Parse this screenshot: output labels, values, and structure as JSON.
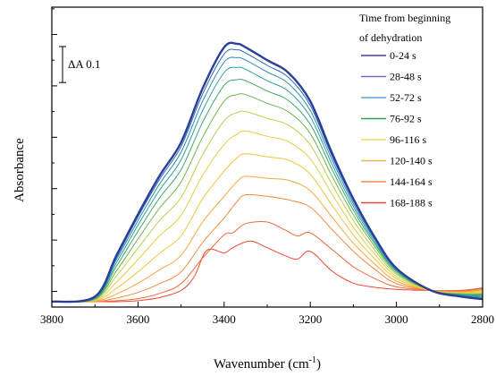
{
  "chart_data": {
    "type": "line",
    "title": "",
    "xlabel": "Wavenumber (cm",
    "xlabel_sup": "-1",
    "xlabel_close": ")",
    "ylabel": "Absorbance",
    "x_reversed": true,
    "xlim": [
      3800,
      2800
    ],
    "xticks": [
      "3800",
      "3600",
      "3400",
      "3200",
      "3000",
      "2800"
    ],
    "y_ticks_labeled": false,
    "scale_bar_label": "ΔA 0.1",
    "scale_bar_value": 0.1,
    "legend": {
      "placement": "top-right",
      "title_line1": "Time from beginning",
      "title_line2": "of dehydration",
      "entries": [
        "0-24 s",
        "28-48 s",
        "52-72 s",
        "76-92 s",
        "96-116 s",
        "120-140 s",
        "144-164 s",
        "168-188 s"
      ],
      "colors": [
        "#3f3fa8",
        "#6b6bd0",
        "#5aa8d8",
        "#2e9e5a",
        "#e8e060",
        "#f2b65a",
        "#f08a55",
        "#e8483a"
      ]
    },
    "series_colors_gradient": [
      "#2b3f9a",
      "#2f7fc0",
      "#2aa0a0",
      "#4aa84a",
      "#b8d050",
      "#f0d040",
      "#f5a840",
      "#f07a40",
      "#ec4a30"
    ],
    "series": [
      {
        "x": [
          3800,
          3700,
          3650,
          3600,
          3550,
          3500,
          3450,
          3400,
          3370,
          3350,
          3300,
          3250,
          3200,
          3150,
          3100,
          3050,
          3000,
          2920,
          2850,
          2800
        ],
        "y": [
          0.0,
          0.01,
          0.09,
          0.17,
          0.245,
          0.31,
          0.415,
          0.495,
          0.502,
          0.495,
          0.47,
          0.445,
          0.39,
          0.29,
          0.2,
          0.125,
          0.065,
          0.022,
          0.01,
          0.005
        ]
      },
      {
        "x": [
          3800,
          3700,
          3650,
          3600,
          3550,
          3500,
          3450,
          3400,
          3370,
          3350,
          3300,
          3250,
          3200,
          3150,
          3100,
          3050,
          3000,
          2920,
          2850,
          2800
        ],
        "y": [
          0.0,
          0.009,
          0.086,
          0.165,
          0.238,
          0.302,
          0.404,
          0.482,
          0.49,
          0.484,
          0.46,
          0.436,
          0.382,
          0.284,
          0.196,
          0.123,
          0.064,
          0.022,
          0.011,
          0.007
        ]
      },
      {
        "x": [
          3800,
          3700,
          3650,
          3600,
          3550,
          3500,
          3450,
          3400,
          3370,
          3350,
          3300,
          3250,
          3200,
          3150,
          3100,
          3050,
          3000,
          2920,
          2850,
          2800
        ],
        "y": [
          0.0,
          0.008,
          0.082,
          0.158,
          0.229,
          0.291,
          0.39,
          0.466,
          0.475,
          0.47,
          0.447,
          0.424,
          0.372,
          0.277,
          0.191,
          0.12,
          0.063,
          0.022,
          0.012,
          0.009
        ]
      },
      {
        "x": [
          3800,
          3700,
          3650,
          3600,
          3550,
          3500,
          3450,
          3400,
          3370,
          3350,
          3300,
          3250,
          3200,
          3150,
          3100,
          3050,
          3000,
          2920,
          2850,
          2800
        ],
        "y": [
          0.0,
          0.007,
          0.076,
          0.149,
          0.217,
          0.276,
          0.372,
          0.446,
          0.456,
          0.452,
          0.43,
          0.409,
          0.36,
          0.268,
          0.185,
          0.116,
          0.061,
          0.022,
          0.013,
          0.011
        ]
      },
      {
        "x": [
          3800,
          3700,
          3650,
          3600,
          3550,
          3500,
          3450,
          3400,
          3370,
          3350,
          3300,
          3250,
          3200,
          3150,
          3100,
          3050,
          3000,
          2920,
          2850,
          2800
        ],
        "y": [
          0.0,
          0.006,
          0.069,
          0.137,
          0.202,
          0.257,
          0.349,
          0.421,
          0.432,
          0.43,
          0.41,
          0.391,
          0.345,
          0.258,
          0.178,
          0.112,
          0.059,
          0.022,
          0.014,
          0.013
        ]
      },
      {
        "x": [
          3800,
          3700,
          3650,
          3600,
          3550,
          3500,
          3450,
          3400,
          3370,
          3350,
          3300,
          3250,
          3200,
          3150,
          3100,
          3050,
          3000,
          2920,
          2850,
          2800
        ],
        "y": [
          0.0,
          0.005,
          0.06,
          0.122,
          0.182,
          0.233,
          0.32,
          0.39,
          0.403,
          0.403,
          0.386,
          0.369,
          0.327,
          0.245,
          0.169,
          0.107,
          0.056,
          0.022,
          0.015,
          0.015
        ]
      },
      {
        "x": [
          3800,
          3700,
          3650,
          3600,
          3550,
          3500,
          3450,
          3400,
          3370,
          3350,
          3300,
          3250,
          3200,
          3150,
          3100,
          3050,
          3000,
          2920,
          2850,
          2800
        ],
        "y": [
          0.0,
          0.004,
          0.05,
          0.104,
          0.158,
          0.203,
          0.286,
          0.352,
          0.368,
          0.37,
          0.357,
          0.343,
          0.305,
          0.229,
          0.158,
          0.1,
          0.053,
          0.022,
          0.016,
          0.017
        ]
      },
      {
        "x": [
          3800,
          3700,
          3650,
          3600,
          3550,
          3500,
          3450,
          3400,
          3370,
          3350,
          3300,
          3250,
          3200,
          3150,
          3100,
          3050,
          3000,
          2920,
          2850,
          2800
        ],
        "y": [
          0.0,
          0.003,
          0.038,
          0.082,
          0.128,
          0.168,
          0.246,
          0.306,
          0.326,
          0.332,
          0.322,
          0.311,
          0.278,
          0.21,
          0.145,
          0.092,
          0.049,
          0.022,
          0.017,
          0.019
        ]
      },
      {
        "x": [
          3800,
          3700,
          3650,
          3600,
          3550,
          3500,
          3450,
          3400,
          3370,
          3350,
          3300,
          3250,
          3200,
          3150,
          3100,
          3050,
          3000,
          2920,
          2850,
          2800
        ],
        "y": [
          0.0,
          0.002,
          0.026,
          0.058,
          0.094,
          0.128,
          0.2,
          0.254,
          0.28,
          0.288,
          0.282,
          0.275,
          0.248,
          0.188,
          0.13,
          0.083,
          0.045,
          0.022,
          0.018,
          0.021
        ]
      },
      {
        "x": [
          3800,
          3700,
          3650,
          3600,
          3550,
          3500,
          3450,
          3400,
          3370,
          3350,
          3300,
          3250,
          3200,
          3150,
          3100,
          3050,
          3000,
          2920,
          2850,
          2800
        ],
        "y": [
          0.0,
          0.001,
          0.015,
          0.036,
          0.062,
          0.09,
          0.155,
          0.205,
          0.234,
          0.244,
          0.24,
          0.236,
          0.216,
          0.165,
          0.114,
          0.073,
          0.04,
          0.022,
          0.019,
          0.023
        ]
      },
      {
        "x": [
          3800,
          3700,
          3650,
          3600,
          3550,
          3500,
          3450,
          3400,
          3370,
          3350,
          3300,
          3250,
          3200,
          3150,
          3100,
          3050,
          3000,
          2920,
          2850,
          2800
        ],
        "y": [
          0.0,
          0.0,
          0.007,
          0.018,
          0.035,
          0.058,
          0.115,
          0.163,
          0.195,
          0.208,
          0.205,
          0.198,
          0.184,
          0.141,
          0.098,
          0.063,
          0.035,
          0.022,
          0.02,
          0.024
        ]
      },
      {
        "x": [
          3800,
          3700,
          3650,
          3600,
          3550,
          3500,
          3450,
          3400,
          3380,
          3350,
          3300,
          3260,
          3230,
          3200,
          3150,
          3100,
          3050,
          3000,
          2920,
          2850,
          2800
        ],
        "y": [
          0.0,
          0.0,
          0.002,
          0.006,
          0.016,
          0.035,
          0.085,
          0.13,
          0.134,
          0.152,
          0.155,
          0.14,
          0.128,
          0.134,
          0.102,
          0.068,
          0.045,
          0.029,
          0.022,
          0.021,
          0.026
        ]
      },
      {
        "x": [
          3800,
          3700,
          3650,
          3600,
          3550,
          3500,
          3470,
          3440,
          3400,
          3380,
          3340,
          3300,
          3260,
          3230,
          3200,
          3150,
          3100,
          3050,
          3000,
          2920,
          2850,
          2800
        ],
        "y": [
          0.0,
          0.0,
          0.0,
          0.002,
          0.008,
          0.022,
          0.048,
          0.1,
          0.095,
          0.105,
          0.118,
          0.105,
          0.09,
          0.083,
          0.098,
          0.06,
          0.036,
          0.028,
          0.024,
          0.022,
          0.022,
          0.027
        ]
      }
    ]
  }
}
